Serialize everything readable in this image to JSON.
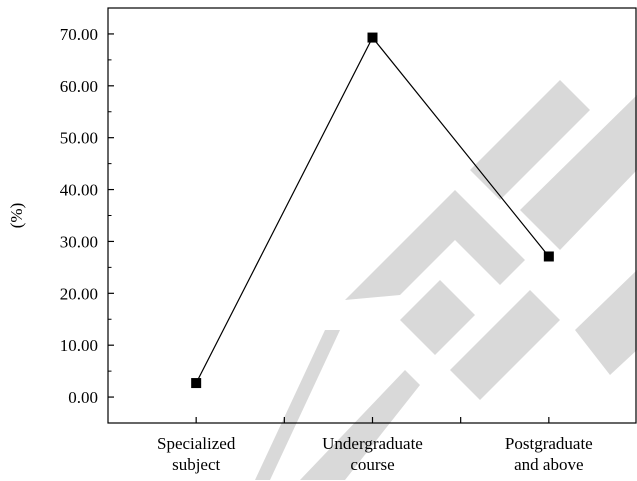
{
  "chart_data": {
    "type": "line",
    "categories": [
      [
        "Specialized",
        "subject"
      ],
      [
        "Undergraduate",
        "course"
      ],
      [
        "Postgraduate",
        "and above"
      ]
    ],
    "values": [
      2.7,
      69.3,
      27.1
    ],
    "ylabel": "(%)",
    "ylim": [
      -5,
      75
    ],
    "yticks": [
      "0.00",
      "10.00",
      "20.00",
      "30.00",
      "40.00",
      "50.00",
      "60.00",
      "70.00"
    ],
    "grid": false,
    "line_color": "#000000",
    "marker": "square",
    "watermark": "RETRACTED",
    "watermark_color": "#d9d9d9"
  }
}
